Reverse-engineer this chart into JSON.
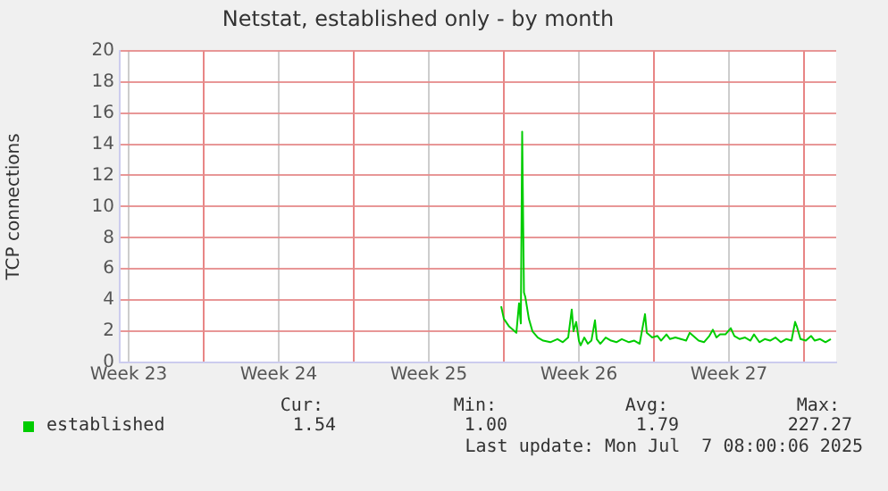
{
  "chart_data": {
    "type": "line",
    "title": "Netstat, established only - by month",
    "ylabel": "TCP connections",
    "xlim": [
      "2025-06-04T02:00",
      "2025-07-07T12:00"
    ],
    "xticks": [
      {
        "value": "2025-06-04T12:00",
        "label": "Week 23"
      },
      {
        "value": "2025-06-08",
        "label": null
      },
      {
        "value": "2025-06-11T12:00",
        "label": "Week 24"
      },
      {
        "value": "2025-06-15",
        "label": null
      },
      {
        "value": "2025-06-18T12:00",
        "label": "Week 25"
      },
      {
        "value": "2025-06-22",
        "label": null
      },
      {
        "value": "2025-06-25T12:00",
        "label": "Week 26"
      },
      {
        "value": "2025-06-29",
        "label": null
      },
      {
        "value": "2025-07-02T12:00",
        "label": "Week 27"
      },
      {
        "value": "2025-07-06",
        "label": null
      }
    ],
    "ylim": [
      0,
      20
    ],
    "yticks": [
      0,
      2,
      4,
      6,
      8,
      10,
      12,
      14,
      16,
      18,
      20
    ],
    "grid": true,
    "legend": "bottom",
    "marker": "none",
    "line_style": "solid",
    "series": [
      {
        "name": "established",
        "color": "#00cc00",
        "x": [
          "2025-06-21T21:00",
          "2025-06-22T00:00",
          "2025-06-22T06:00",
          "2025-06-22T12:00",
          "2025-06-22T14:00",
          "2025-06-22T17:00",
          "2025-06-22T19:00",
          "2025-06-22T20:30",
          "2025-06-22T22:30",
          "2025-06-23T00:00",
          "2025-06-23T04:00",
          "2025-06-23T08:00",
          "2025-06-23T14:00",
          "2025-06-23T20:00",
          "2025-06-24T04:00",
          "2025-06-24T12:00",
          "2025-06-24T18:00",
          "2025-06-25T00:00",
          "2025-06-25T02:00",
          "2025-06-25T04:00",
          "2025-06-25T06:00",
          "2025-06-25T09:00",
          "2025-06-25T12:00",
          "2025-06-25T14:00",
          "2025-06-25T18:00",
          "2025-06-25T22:00",
          "2025-06-26T02:00",
          "2025-06-26T06:00",
          "2025-06-26T08:00",
          "2025-06-26T12:00",
          "2025-06-26T18:00",
          "2025-06-27T00:00",
          "2025-06-27T06:00",
          "2025-06-27T12:00",
          "2025-06-27T20:00",
          "2025-06-28T02:00",
          "2025-06-28T08:00",
          "2025-06-28T14:00",
          "2025-06-28T16:00",
          "2025-06-28T22:00",
          "2025-06-29T04:00",
          "2025-06-29T08:00",
          "2025-06-29T14:00",
          "2025-06-29T18:00",
          "2025-06-30T00:00",
          "2025-06-30T06:00",
          "2025-06-30T12:00",
          "2025-06-30T16:00",
          "2025-06-30T20:00",
          "2025-07-01T02:00",
          "2025-07-01T08:00",
          "2025-07-01T14:00",
          "2025-07-01T18:00",
          "2025-07-01T22:00",
          "2025-07-02T02:00",
          "2025-07-02T08:00",
          "2025-07-02T14:00",
          "2025-07-02T18:00",
          "2025-07-03T00:00",
          "2025-07-03T06:00",
          "2025-07-03T12:00",
          "2025-07-03T16:00",
          "2025-07-03T22:00",
          "2025-07-04T04:00",
          "2025-07-04T10:00",
          "2025-07-04T16:00",
          "2025-07-04T22:00",
          "2025-07-05T04:00",
          "2025-07-05T10:00",
          "2025-07-05T14:00",
          "2025-07-05T16:00",
          "2025-07-05T20:00",
          "2025-07-06T02:00",
          "2025-07-06T08:00",
          "2025-07-06T12:00",
          "2025-07-06T18:00",
          "2025-07-07T00:00",
          "2025-07-07T06:00"
        ],
        "values": [
          3.6,
          2.8,
          2.3,
          2.0,
          1.9,
          3.8,
          2.5,
          14.8,
          4.5,
          4.2,
          2.8,
          2.0,
          1.6,
          1.4,
          1.3,
          1.5,
          1.3,
          1.6,
          2.5,
          3.4,
          2.0,
          2.6,
          1.4,
          1.1,
          1.6,
          1.2,
          1.4,
          2.7,
          1.5,
          1.2,
          1.6,
          1.4,
          1.3,
          1.5,
          1.3,
          1.4,
          1.2,
          3.1,
          1.9,
          1.6,
          1.7,
          1.4,
          1.8,
          1.5,
          1.6,
          1.5,
          1.4,
          1.9,
          1.7,
          1.4,
          1.3,
          1.7,
          2.1,
          1.6,
          1.8,
          1.8,
          2.2,
          1.7,
          1.5,
          1.6,
          1.4,
          1.8,
          1.3,
          1.5,
          1.4,
          1.6,
          1.3,
          1.5,
          1.4,
          2.6,
          2.3,
          1.5,
          1.4,
          1.7,
          1.4,
          1.5,
          1.3,
          1.5
        ]
      }
    ],
    "annotations": [
      "Cur:",
      "Min:",
      "Avg:",
      "Max:",
      "1.54",
      "1.00",
      "1.79",
      "227.27",
      "Last update: Mon Jul  7 08:00:06 2025"
    ]
  }
}
